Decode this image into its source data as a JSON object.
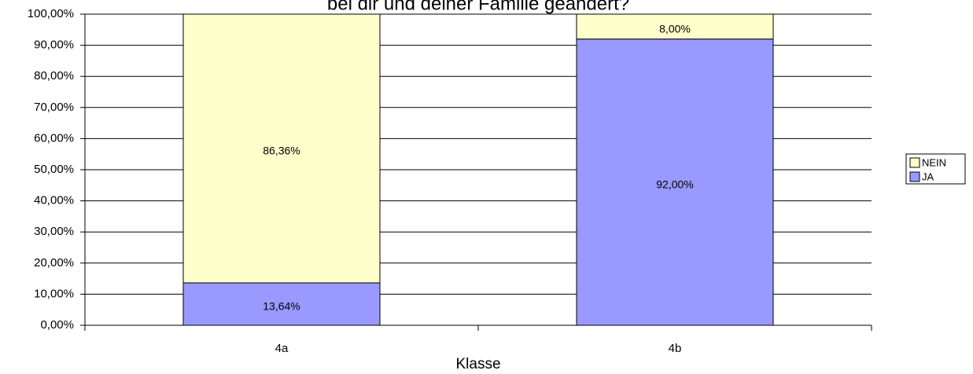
{
  "chart_data": {
    "type": "stacked_bar",
    "title": "bei dir und deiner Familie geändert?",
    "x_label": "Klasse",
    "categories": [
      "4a",
      "4b"
    ],
    "series": [
      {
        "name": "JA",
        "color": "#9999ff",
        "values": [
          13.64,
          92
        ],
        "value_labels": [
          "13,64%",
          "92,00%"
        ]
      },
      {
        "name": "NEIN",
        "color": "#ffffcc",
        "values": [
          86.36,
          8
        ],
        "value_labels": [
          "86,36%",
          "8,00%"
        ]
      }
    ],
    "ylim": [
      0,
      100
    ],
    "yticks": [
      {
        "value": 0,
        "label": "0,00%"
      },
      {
        "value": 10,
        "label": "10,00%"
      },
      {
        "value": 20,
        "label": "20,00%"
      },
      {
        "value": 30,
        "label": "30,00%"
      },
      {
        "value": 40,
        "label": "40,00%"
      },
      {
        "value": 50,
        "label": "50,00%"
      },
      {
        "value": 60,
        "label": "60,00%"
      },
      {
        "value": 70,
        "label": "70,00%"
      },
      {
        "value": 80,
        "label": "80,00%"
      },
      {
        "value": 90,
        "label": "90,00%"
      },
      {
        "value": 100,
        "label": "100,00%"
      }
    ],
    "grid": true,
    "legend": "right"
  }
}
